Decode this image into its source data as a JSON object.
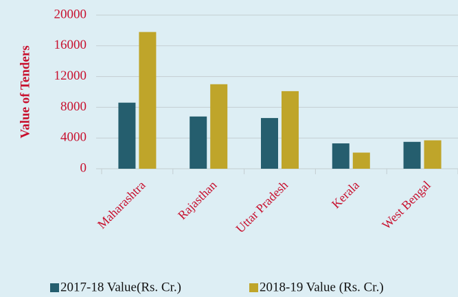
{
  "chart_data": {
    "type": "bar",
    "y_label": "Value of Tenders",
    "categories": [
      "Maharashtra",
      "Rajasthan",
      "Uttar Pradesh",
      "Kerala",
      "West Bengal"
    ],
    "series": [
      {
        "name": "2017-18 Value(Rs. Cr.)",
        "color": "#255e6e",
        "values": [
          8600,
          6800,
          6600,
          3300,
          3500
        ]
      },
      {
        "name": "2018-19 Value (Rs. Cr.)",
        "color": "#bfa52a",
        "values": [
          17800,
          11000,
          10100,
          2100,
          3700
        ]
      }
    ],
    "ylim": [
      0,
      20000
    ],
    "yticks": [
      0,
      4000,
      8000,
      12000,
      16000,
      20000
    ],
    "grid": true,
    "legend": "bottom"
  }
}
